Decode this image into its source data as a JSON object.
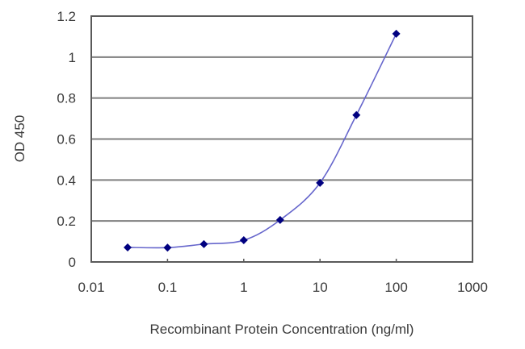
{
  "chart_data": {
    "type": "scatter",
    "title": "",
    "xlabel": "Recombinant Protein Concentration (ng/ml)",
    "ylabel": "OD 450",
    "xscale": "log",
    "xlim": [
      0.01,
      1000
    ],
    "ylim": [
      0,
      1.2
    ],
    "x_ticks": [
      0.01,
      0.1,
      1,
      10,
      100,
      1000
    ],
    "x_tick_labels": [
      "0.01",
      "0.1",
      "1",
      "10",
      "100",
      "1000"
    ],
    "y_ticks": [
      0,
      0.2,
      0.4,
      0.6,
      0.8,
      1,
      1.2
    ],
    "y_tick_labels": [
      "0",
      "0.2",
      "0.4",
      "0.6",
      "0.8",
      "1",
      "1.2"
    ],
    "grid": "horizontal",
    "legend": null,
    "series": [
      {
        "name": "OD 450",
        "x": [
          0.03,
          0.1,
          0.3,
          1,
          3,
          10,
          30,
          100
        ],
        "values": [
          0.071,
          0.07,
          0.087,
          0.106,
          0.205,
          0.386,
          0.717,
          1.114
        ],
        "marker": "diamond",
        "marker_color": "#000080",
        "line_color": "#6666cc",
        "line_style": "smooth"
      }
    ]
  },
  "colors": {
    "grid": "#7f7f7f",
    "frame": "#5a5a5a",
    "text": "#3a3a3a"
  }
}
